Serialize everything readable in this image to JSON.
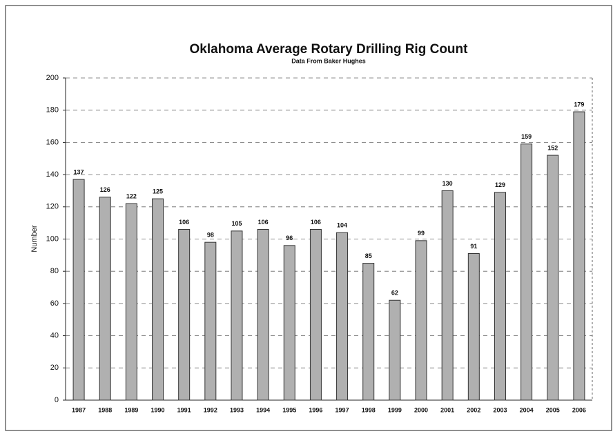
{
  "chart_data": {
    "type": "bar",
    "title": "Oklahoma Average Rotary Drilling Rig Count",
    "subtitle": "Data From Baker Hughes",
    "y_label": "Number",
    "categories": [
      "1987",
      "1988",
      "1989",
      "1990",
      "1991",
      "1992",
      "1993",
      "1994",
      "1995",
      "1996",
      "1997",
      "1998",
      "1999",
      "2000",
      "2001",
      "2002",
      "2003",
      "2004",
      "2005",
      "2006"
    ],
    "values": [
      137,
      126,
      122,
      125,
      106,
      98,
      105,
      106,
      96,
      106,
      104,
      85,
      62,
      99,
      130,
      91,
      129,
      159,
      152,
      179
    ],
    "color": "#b0b0b0",
    "ylim": [
      0,
      200
    ],
    "yticks": [
      0,
      20,
      40,
      60,
      80,
      100,
      120,
      140,
      160,
      180,
      200
    ],
    "grid": true
  }
}
